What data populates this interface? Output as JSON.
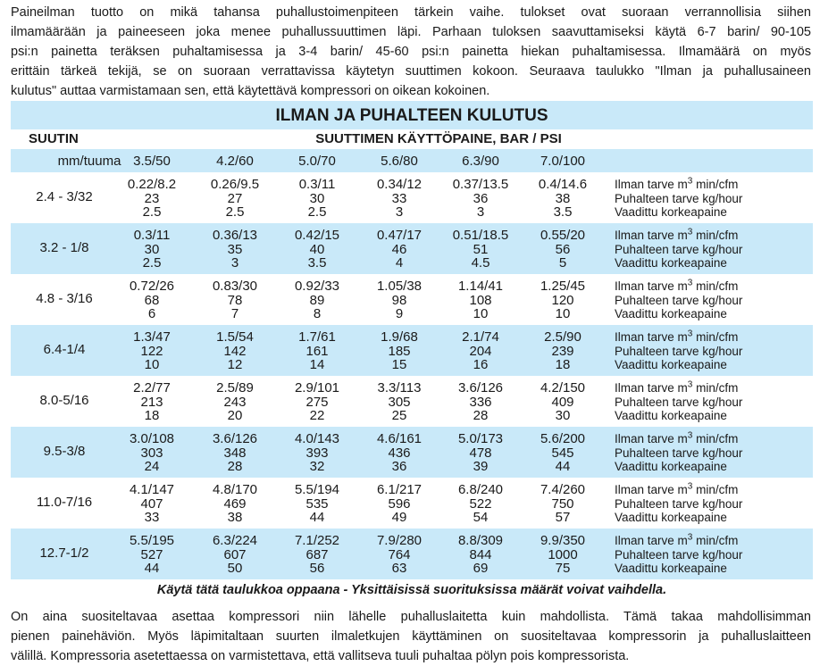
{
  "intro_lines": [
    "Paineilman tuotto on mikä tahansa puhallustoimenpiteen tärkein vaihe. tulokset ovat suoraan verrannollisia siihen",
    "ilmamäärään ja paineeseen joka menee puhallussuuttimen läpi. Parhaan tuloksen saavuttamiseksi käytä 6-7 barin/ 90-105",
    "psi:n painetta teräksen puhaltamisessa ja 3-4 barin/ 45-60 psi:n painetta hiekan puhaltamisessa. Ilmamäärä on myös",
    "erittäin tärkeä tekijä, se on suoraan verrattavissa käytetyn suuttimen kokoon. Seuraava taulukko \"Ilman ja puhallusaineen",
    "kulutus\" auttaa varmistamaan sen, että käytettävä kompressori on oikean kokoinen."
  ],
  "table": {
    "title": "ILMAN JA PUHALTEEN KULUTUS",
    "nozzle_header": "SUUTIN",
    "pressure_header": "SUUTTIMEN KÄYTTÖPAINE, BAR / PSI",
    "unit_label": "mm/tuuma",
    "pressures": [
      "3.5/50",
      "4.2/60",
      "5.0/70",
      "5.6/80",
      "6.3/90",
      "7.0/100"
    ],
    "row_labels": {
      "air_prefix": "Ilman tarve m",
      "air_sup": "3",
      "air_suffix": " min/cfm",
      "abrasive": "Puhalteen tarve kg/hour",
      "compressor": "Vaadittu korkeapaine"
    },
    "band_color": "#c9e9f9",
    "rows": [
      {
        "nozzle": "2.4 - 3/32",
        "air": [
          "0.22/8.2",
          "0.26/9.5",
          "0.3/11",
          "0.34/12",
          "0.37/13.5",
          "0.4/14.6"
        ],
        "abrasive": [
          "23",
          "27",
          "30",
          "33",
          "36",
          "38"
        ],
        "compressor": [
          "2.5",
          "2.5",
          "2.5",
          "3",
          "3",
          "3.5"
        ]
      },
      {
        "nozzle": "3.2 - 1/8",
        "air": [
          "0.3/11",
          "0.36/13",
          "0.42/15",
          "0.47/17",
          "0.51/18.5",
          "0.55/20"
        ],
        "abrasive": [
          "30",
          "35",
          "40",
          "46",
          "51",
          "56"
        ],
        "compressor": [
          "2.5",
          "3",
          "3.5",
          "4",
          "4.5",
          "5"
        ]
      },
      {
        "nozzle": "4.8 - 3/16",
        "air": [
          "0.72/26",
          "0.83/30",
          "0.92/33",
          "1.05/38",
          "1.14/41",
          "1.25/45"
        ],
        "abrasive": [
          "68",
          "78",
          "89",
          "98",
          "108",
          "120"
        ],
        "compressor": [
          "6",
          "7",
          "8",
          "9",
          "10",
          "10"
        ]
      },
      {
        "nozzle": "6.4-1/4",
        "air": [
          "1.3/47",
          "1.5/54",
          "1.7/61",
          "1.9/68",
          "2.1/74",
          "2.5/90"
        ],
        "abrasive": [
          "122",
          "142",
          "161",
          "185",
          "204",
          "239"
        ],
        "compressor": [
          "10",
          "12",
          "14",
          "15",
          "16",
          "18"
        ]
      },
      {
        "nozzle": "8.0-5/16",
        "air": [
          "2.2/77",
          "2.5/89",
          "2.9/101",
          "3.3/113",
          "3.6/126",
          "4.2/150"
        ],
        "abrasive": [
          "213",
          "243",
          "275",
          "305",
          "336",
          "409"
        ],
        "compressor": [
          "18",
          "20",
          "22",
          "25",
          "28",
          "30"
        ]
      },
      {
        "nozzle": "9.5-3/8",
        "air": [
          "3.0/108",
          "3.6/126",
          "4.0/143",
          "4.6/161",
          "5.0/173",
          "5.6/200"
        ],
        "abrasive": [
          "303",
          "348",
          "393",
          "436",
          "478",
          "545"
        ],
        "compressor": [
          "24",
          "28",
          "32",
          "36",
          "39",
          "44"
        ]
      },
      {
        "nozzle": "11.0-7/16",
        "air": [
          "4.1/147",
          "4.8/170",
          "5.5/194",
          "6.1/217",
          "6.8/240",
          "7.4/260"
        ],
        "abrasive": [
          "407",
          "469",
          "535",
          "596",
          "522",
          "750"
        ],
        "compressor": [
          "33",
          "38",
          "44",
          "49",
          "54",
          "57"
        ]
      },
      {
        "nozzle": "12.7-1/2",
        "air": [
          "5.5/195",
          "6.3/224",
          "7.1/252",
          "7.9/280",
          "8.8/309",
          "9.9/350"
        ],
        "abrasive": [
          "527",
          "607",
          "687",
          "764",
          "844",
          "1000"
        ],
        "compressor": [
          "44",
          "50",
          "56",
          "63",
          "69",
          "75"
        ]
      }
    ],
    "caption": "Käytä tätä taulukkoa oppaana - Yksittäisissä suorituksissa määrät voivat vaihdella."
  },
  "outro_lines": [
    "On aina suositeltavaa asettaa kompressori niin lähelle puhalluslaitetta kuin mahdollista. Tämä takaa mahdollisimman",
    "pienen painehäviön. Myös läpimitaltaan suurten ilmaletkujen käyttäminen on suositeltavaa kompressorin ja puhalluslaitteen",
    "välillä. Kompressoria asetettaessa on varmistettava, että vallitseva tuuli puhaltaa pölyn pois kompressorista."
  ]
}
